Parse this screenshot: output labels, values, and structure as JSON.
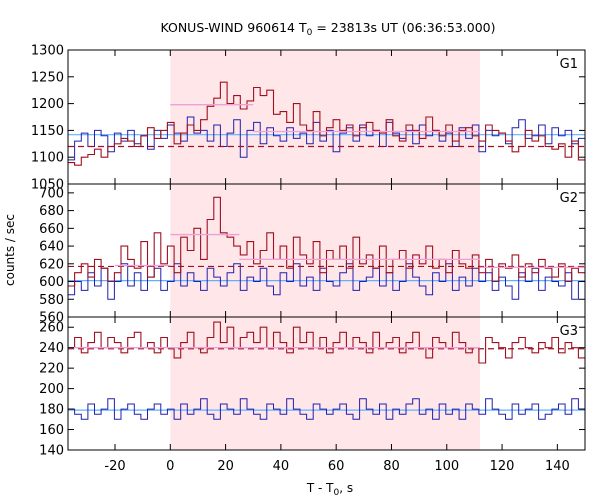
{
  "chart_data": {
    "type": "line",
    "title_main": "KONUS-WIND 960614 T",
    "title_sub": "0",
    "title_rest": " = 23813s UT (06:36:53.000)",
    "xlabel_main": "T - T",
    "xlabel_sub": "0",
    "xlabel_rest": ", s",
    "ylabel": "counts / sec",
    "xlim": [
      -37,
      150
    ],
    "xticks": [
      "-20",
      "0",
      "20",
      "40",
      "60",
      "80",
      "100",
      "120",
      "140"
    ],
    "xtick_values": [
      -20,
      0,
      20,
      40,
      60,
      80,
      100,
      120,
      140
    ],
    "highlight_interval": [
      0,
      112
    ],
    "colors": {
      "red": "#a01020",
      "blue": "#2020b0",
      "pink": "#f0a0d8",
      "lightblue": "#60b0ff",
      "shade": "#ffe6e8"
    },
    "panels": [
      {
        "name": "G1",
        "ylim": [
          1050,
          1300
        ],
        "yticks": [
          "1050",
          "1100",
          "1150",
          "1200",
          "1250",
          "1300"
        ],
        "ytick_values": [
          1050,
          1100,
          1150,
          1200,
          1250,
          1300
        ],
        "background_level": 1142,
        "red_background_level": 1120,
        "fit_levels": [
          {
            "x": [
              0,
              30
            ],
            "y": 1198
          },
          {
            "x": [
              30,
              112
            ],
            "y": 1148
          }
        ],
        "blue_series": [
          1095,
          1130,
          1145,
          1120,
          1150,
          1140,
          1110,
          1145,
          1130,
          1150,
          1125,
          1140,
          1115,
          1150,
          1135,
          1160,
          1145,
          1130,
          1175,
          1145,
          1150,
          1130,
          1160,
          1120,
          1145,
          1170,
          1100,
          1150,
          1165,
          1125,
          1155,
          1140,
          1130,
          1155,
          1135,
          1145,
          1125,
          1165,
          1130,
          1150,
          1110,
          1145,
          1155,
          1130,
          1160,
          1140,
          1150,
          1120,
          1165,
          1145,
          1135,
          1150,
          1125,
          1160,
          1140,
          1150,
          1130,
          1145,
          1120,
          1155,
          1135,
          1160,
          1110,
          1150,
          1140,
          1145,
          1125,
          1155,
          1170,
          1135,
          1140,
          1160,
          1125,
          1155,
          1140,
          1150,
          1125,
          1135
        ],
        "red_series": [
          1090,
          1085,
          1100,
          1105,
          1115,
          1100,
          1120,
          1125,
          1135,
          1130,
          1120,
          1140,
          1155,
          1135,
          1150,
          1165,
          1125,
          1145,
          1160,
          1150,
          1170,
          1195,
          1210,
          1240,
          1200,
          1215,
          1190,
          1205,
          1230,
          1215,
          1225,
          1180,
          1185,
          1165,
          1200,
          1160,
          1150,
          1185,
          1140,
          1155,
          1170,
          1150,
          1160,
          1140,
          1155,
          1165,
          1150,
          1145,
          1170,
          1140,
          1130,
          1160,
          1150,
          1135,
          1175,
          1150,
          1140,
          1160,
          1130,
          1150,
          1155,
          1140,
          1130,
          1160,
          1150,
          1145,
          1130,
          1110,
          1120,
          1150,
          1130,
          1140,
          1120,
          1115,
          1125,
          1100,
          1130,
          1095
        ]
      },
      {
        "name": "G2",
        "ylim": [
          560,
          710
        ],
        "yticks": [
          "560",
          "580",
          "600",
          "620",
          "640",
          "660",
          "680",
          "700"
        ],
        "ytick_values": [
          560,
          580,
          600,
          620,
          640,
          660,
          680,
          700
        ],
        "background_level": 601,
        "red_background_level": 617,
        "fit_levels": [
          {
            "x": [
              -20,
              0
            ],
            "y": 618
          },
          {
            "x": [
              0,
              25
            ],
            "y": 653
          },
          {
            "x": [
              25,
              112
            ],
            "y": 625
          },
          {
            "x": [
              112,
              150
            ],
            "y": 616
          }
        ],
        "blue_series": [
          585,
          600,
          590,
          610,
          595,
          615,
          580,
          600,
          620,
          595,
          610,
          590,
          605,
          615,
          590,
          600,
          620,
          595,
          610,
          600,
          590,
          615,
          605,
          595,
          610,
          620,
          590,
          605,
          600,
          615,
          595,
          585,
          610,
          600,
          620,
          595,
          605,
          590,
          615,
          600,
          595,
          610,
          620,
          590,
          600,
          605,
          615,
          595,
          610,
          590,
          600,
          620,
          605,
          595,
          585,
          610,
          600,
          620,
          590,
          605,
          595,
          615,
          600,
          610,
          590,
          605,
          595,
          580,
          610,
          600,
          615,
          590,
          605,
          600,
          595,
          610,
          580,
          600
        ],
        "red_series": [
          595,
          610,
          620,
          605,
          625,
          615,
          600,
          610,
          640,
          625,
          615,
          645,
          605,
          655,
          620,
          640,
          610,
          650,
          635,
          660,
          625,
          670,
          695,
          655,
          650,
          640,
          630,
          645,
          620,
          635,
          655,
          625,
          640,
          615,
          650,
          630,
          620,
          645,
          610,
          635,
          625,
          640,
          615,
          650,
          620,
          630,
          615,
          640,
          610,
          625,
          635,
          615,
          630,
          620,
          640,
          615,
          625,
          610,
          635,
          620,
          615,
          630,
          610,
          625,
          600,
          620,
          615,
          630,
          605,
          620,
          610,
          625,
          615,
          605,
          620,
          600,
          615,
          610
        ]
      },
      {
        "name": "G3",
        "ylim": [
          140,
          270
        ],
        "yticks": [
          "140",
          "160",
          "180",
          "200",
          "220",
          "240",
          "260"
        ],
        "ytick_values": [
          140,
          160,
          180,
          200,
          220,
          240,
          260
        ],
        "background_level": 179,
        "red_background_level": 239,
        "fit_levels": [
          {
            "x": [
              -37,
              112
            ],
            "y": 240
          }
        ],
        "blue_series": [
          180,
          175,
          170,
          185,
          175,
          180,
          190,
          170,
          180,
          185,
          175,
          170,
          180,
          185,
          175,
          180,
          170,
          185,
          175,
          180,
          190,
          175,
          170,
          185,
          180,
          175,
          190,
          180,
          175,
          170,
          185,
          180,
          175,
          190,
          180,
          175,
          170,
          185,
          180,
          175,
          180,
          185,
          175,
          170,
          190,
          180,
          175,
          185,
          170,
          180,
          175,
          185,
          190,
          175,
          180,
          170,
          185,
          175,
          180,
          170,
          185,
          180,
          175,
          190,
          180,
          175,
          170,
          185,
          175,
          180,
          185,
          170,
          175,
          180,
          185,
          175,
          190,
          180
        ],
        "red_series": [
          240,
          250,
          235,
          245,
          255,
          240,
          250,
          245,
          235,
          250,
          255,
          240,
          245,
          235,
          250,
          240,
          230,
          245,
          255,
          240,
          235,
          250,
          265,
          245,
          260,
          240,
          250,
          255,
          245,
          260,
          240,
          255,
          245,
          235,
          260,
          245,
          255,
          240,
          250,
          235,
          245,
          255,
          240,
          250,
          245,
          235,
          255,
          240,
          245,
          250,
          235,
          245,
          255,
          240,
          230,
          250,
          245,
          240,
          255,
          245,
          235,
          240,
          225,
          250,
          245,
          240,
          230,
          245,
          250,
          240,
          235,
          245,
          240,
          250,
          235,
          245,
          240,
          230
        ]
      }
    ]
  }
}
